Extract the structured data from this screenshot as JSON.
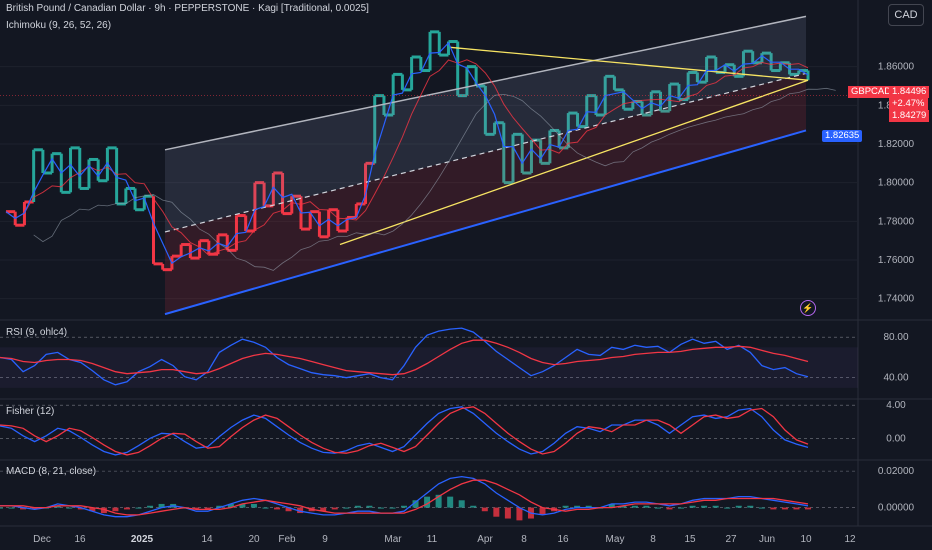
{
  "header": {
    "title": "British Pound / Canadian Dollar · 9h · PEPPERSTONE · Kagi [Traditional, 0.0025]",
    "indicator": "Ichimoku (9, 26, 52, 26)",
    "currency": "CAD"
  },
  "panes": {
    "rsi": "RSI (9, ohlc4)",
    "fisher": "Fisher (12)",
    "macd": "MACD (8, 21, close)"
  },
  "price_labels": {
    "symbol": "GBPCAD",
    "last": "1.84496",
    "change": "+2.47%",
    "ref": "1.84279",
    "channel": "1.82635"
  },
  "colors": {
    "up": "#26a69a",
    "down": "#f23645",
    "channel_upper": "#b2b5be",
    "channel_lower": "#2962ff",
    "triangle": "#f7e463",
    "background": "#131722"
  },
  "chart_data": {
    "type": "line",
    "chart_style": "kagi",
    "x_ticks": [
      "Dec",
      "16",
      "2025",
      "14",
      "20",
      "Feb",
      "9",
      "Mar",
      "11",
      "Apr",
      "8",
      "16",
      "May",
      "8",
      "15",
      "27",
      "Jun",
      "10",
      "12"
    ],
    "y_ticks": [
      "1.86000",
      "1.84000",
      "1.82000",
      "1.80000",
      "1.78000",
      "1.76000",
      "1.74000"
    ],
    "ylim": [
      1.73,
      1.88
    ],
    "kagi_levels": [
      1.785,
      1.778,
      1.79,
      1.817,
      1.805,
      1.815,
      1.795,
      1.818,
      1.797,
      1.812,
      1.801,
      1.818,
      1.789,
      1.797,
      1.786,
      1.793,
      1.758,
      1.755,
      1.762,
      1.768,
      1.761,
      1.77,
      1.763,
      1.773,
      1.765,
      1.783,
      1.775,
      1.8,
      1.788,
      1.805,
      1.784,
      1.793,
      1.776,
      1.785,
      1.772,
      1.786,
      1.775,
      1.782,
      1.789,
      1.81,
      1.845,
      1.835,
      1.856,
      1.848,
      1.865,
      1.858,
      1.878,
      1.866,
      1.873,
      1.845,
      1.86,
      1.85,
      1.825,
      1.831,
      1.8,
      1.825,
      1.805,
      1.822,
      1.81,
      1.827,
      1.818,
      1.836,
      1.829,
      1.845,
      1.835,
      1.855,
      1.848,
      1.838,
      1.842,
      1.835,
      1.847,
      1.837,
      1.851,
      1.843,
      1.857,
      1.852,
      1.865,
      1.857,
      1.861,
      1.855,
      1.868,
      1.862,
      1.867,
      1.858,
      1.862,
      1.856,
      1.858,
      1.853
    ],
    "rsi": {
      "ticks": [
        "80.00",
        "40.00"
      ],
      "ylim": [
        20,
        95
      ],
      "rsi": [
        60,
        58,
        46,
        52,
        63,
        65,
        58,
        55,
        47,
        38,
        33,
        36,
        46,
        51,
        58,
        52,
        41,
        38,
        46,
        65,
        72,
        78,
        75,
        70,
        60,
        53,
        49,
        45,
        43,
        42,
        40,
        42,
        44,
        40,
        38,
        52,
        70,
        82,
        86,
        88,
        89,
        85,
        76,
        66,
        58,
        50,
        42,
        46,
        52,
        60,
        68,
        63,
        62,
        70,
        68,
        72,
        70,
        71,
        65,
        73,
        78,
        74,
        76,
        68,
        72,
        65,
        52,
        48,
        50,
        44,
        41
      ],
      "signal": [
        60,
        59,
        56,
        55,
        57,
        58,
        58,
        57,
        54,
        50,
        46,
        44,
        45,
        46,
        48,
        48,
        46,
        44,
        45,
        49,
        54,
        59,
        62,
        64,
        63,
        61,
        59,
        56,
        53,
        50,
        47,
        46,
        45,
        44,
        43,
        44,
        48,
        54,
        61,
        68,
        74,
        77,
        77,
        74,
        70,
        65,
        59,
        55,
        53,
        54,
        56,
        57,
        58,
        60,
        61,
        63,
        64,
        65,
        65,
        66,
        68,
        69,
        70,
        70,
        71,
        70,
        67,
        64,
        62,
        59,
        56
      ]
    },
    "fisher": {
      "ticks": [
        "4.00",
        "0.00"
      ],
      "ylim": [
        -2.5,
        4.5
      ],
      "fisher": [
        1.5,
        1.2,
        0.3,
        -0.4,
        0.3,
        1.2,
        0.9,
        0.1,
        -0.8,
        -1.6,
        -2.0,
        -1.7,
        -0.9,
        0.0,
        0.6,
        0.5,
        -0.4,
        -1.2,
        -1.0,
        0.2,
        1.3,
        2.2,
        2.8,
        2.4,
        1.4,
        0.4,
        -0.5,
        -1.2,
        -1.7,
        -1.8,
        -1.5,
        -0.9,
        -0.6,
        -1.1,
        -1.6,
        -1.0,
        0.4,
        1.8,
        3.0,
        3.6,
        3.8,
        3.0,
        1.8,
        0.6,
        -0.4,
        -1.3,
        -1.9,
        -1.6,
        -0.6,
        0.6,
        1.4,
        1.2,
        0.8,
        1.6,
        1.6,
        2.2,
        2.2,
        1.6,
        0.6,
        1.6,
        2.6,
        2.8,
        2.4,
        2.6,
        3.4,
        3.6,
        2.6,
        1.0,
        -0.2,
        -0.7,
        -1.1
      ],
      "trigger": [
        1.6,
        1.5,
        1.2,
        0.3,
        -0.4,
        0.3,
        1.2,
        0.9,
        0.1,
        -0.8,
        -1.6,
        -2.0,
        -1.7,
        -0.9,
        0.0,
        0.6,
        0.5,
        -0.4,
        -1.2,
        -1.0,
        0.2,
        1.3,
        2.2,
        2.8,
        2.4,
        1.4,
        0.4,
        -0.5,
        -1.2,
        -1.7,
        -1.8,
        -1.5,
        -0.9,
        -0.6,
        -1.1,
        -1.6,
        -1.0,
        0.4,
        1.8,
        3.0,
        3.6,
        3.8,
        3.0,
        1.8,
        0.6,
        -0.4,
        -1.3,
        -1.9,
        -1.6,
        -0.6,
        0.6,
        1.4,
        1.2,
        0.8,
        1.6,
        1.6,
        2.2,
        2.2,
        1.6,
        0.6,
        1.6,
        2.6,
        2.8,
        2.4,
        2.6,
        3.4,
        3.6,
        2.6,
        1.0,
        -0.2,
        -0.7
      ]
    },
    "macd": {
      "ticks": [
        "0.02000",
        "0.00000"
      ],
      "ylim": [
        -0.009,
        0.025
      ],
      "macd": [
        0.001,
        0.001,
        0.0,
        -0.001,
        0.0,
        0.002,
        0.001,
        0.0,
        -0.002,
        -0.004,
        -0.005,
        -0.005,
        -0.004,
        -0.002,
        0.0,
        0.001,
        0.0,
        -0.002,
        -0.002,
        0.0,
        0.002,
        0.004,
        0.005,
        0.004,
        0.002,
        0.0,
        -0.002,
        -0.003,
        -0.004,
        -0.004,
        -0.003,
        -0.002,
        -0.002,
        -0.003,
        -0.003,
        -0.002,
        0.003,
        0.008,
        0.013,
        0.016,
        0.017,
        0.016,
        0.013,
        0.008,
        0.004,
        0.0,
        -0.003,
        -0.004,
        -0.003,
        -0.001,
        0.0,
        0.0,
        0.0,
        0.002,
        0.002,
        0.003,
        0.003,
        0.002,
        0.001,
        0.002,
        0.004,
        0.005,
        0.005,
        0.005,
        0.006,
        0.006,
        0.005,
        0.004,
        0.003,
        0.002,
        0.001
      ],
      "signal": [
        0.001,
        0.001,
        0.001,
        0.0,
        0.0,
        0.001,
        0.001,
        0.001,
        0.0,
        -0.001,
        -0.003,
        -0.004,
        -0.004,
        -0.003,
        -0.002,
        -0.001,
        0.0,
        -0.001,
        -0.001,
        -0.001,
        0.0,
        0.002,
        0.003,
        0.004,
        0.003,
        0.002,
        0.001,
        -0.001,
        -0.002,
        -0.003,
        -0.003,
        -0.003,
        -0.003,
        -0.003,
        -0.003,
        -0.003,
        -0.001,
        0.002,
        0.006,
        0.01,
        0.013,
        0.015,
        0.015,
        0.013,
        0.01,
        0.007,
        0.003,
        0.0,
        -0.001,
        -0.002,
        -0.001,
        -0.001,
        0.0,
        0.0,
        0.001,
        0.002,
        0.002,
        0.002,
        0.002,
        0.002,
        0.003,
        0.004,
        0.004,
        0.005,
        0.005,
        0.005,
        0.005,
        0.005,
        0.004,
        0.003,
        0.002
      ]
    }
  }
}
